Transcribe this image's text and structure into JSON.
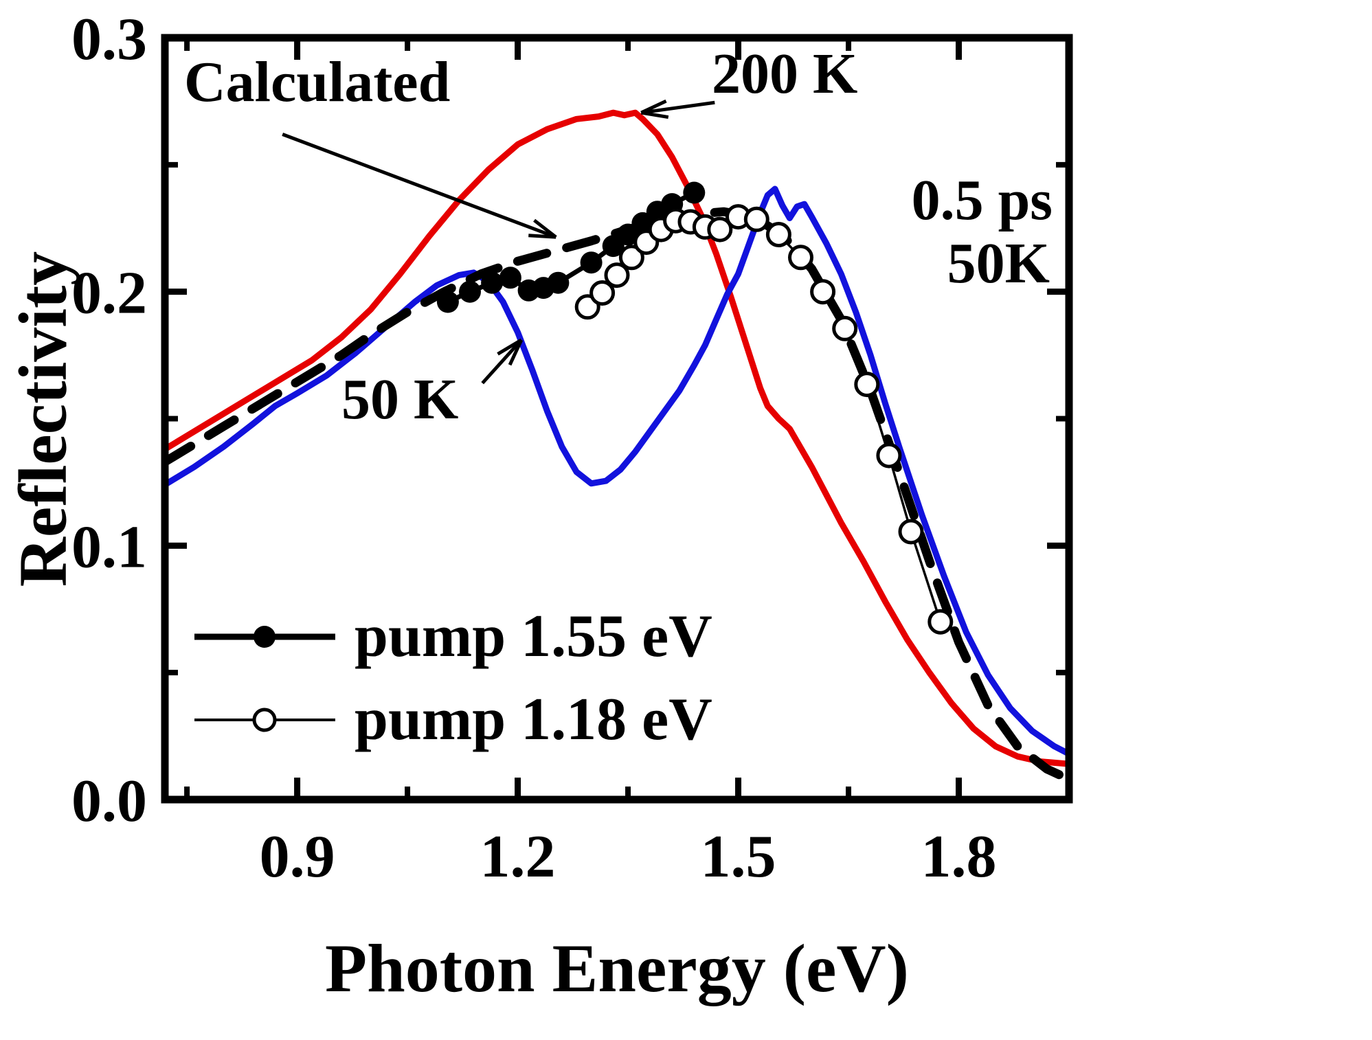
{
  "chart_data": {
    "type": "line",
    "title": "",
    "xlabel": "Photon Energy (eV)",
    "ylabel": "Reflectivity",
    "x_axis": {
      "label": "Photon Energy (eV)",
      "range": [
        0.72,
        1.95
      ],
      "major_ticks": [
        0.9,
        1.2,
        1.5,
        1.8
      ],
      "minor_ticks": [
        0.75,
        1.05,
        1.35,
        1.65
      ],
      "tick_labels": [
        "0.9",
        "1.2",
        "1.5",
        "1.8"
      ]
    },
    "y_axis": {
      "label": "Reflectivity",
      "range": [
        0.0,
        0.3
      ],
      "major_ticks": [
        0.0,
        0.1,
        0.2,
        0.3
      ],
      "minor_ticks": [
        0.05,
        0.15,
        0.25
      ],
      "tick_labels": [
        "0.0",
        "0.1",
        "0.2",
        "0.3"
      ]
    },
    "series": [
      {
        "name": "200 K",
        "color": "#e60000",
        "width": 9,
        "points": [
          [
            0.72,
            0.138
          ],
          [
            0.76,
            0.145
          ],
          [
            0.8,
            0.152
          ],
          [
            0.84,
            0.159
          ],
          [
            0.88,
            0.166
          ],
          [
            0.92,
            0.173
          ],
          [
            0.96,
            0.182
          ],
          [
            1.0,
            0.193
          ],
          [
            1.04,
            0.207
          ],
          [
            1.08,
            0.222
          ],
          [
            1.12,
            0.236
          ],
          [
            1.16,
            0.248
          ],
          [
            1.2,
            0.258
          ],
          [
            1.24,
            0.264
          ],
          [
            1.28,
            0.268
          ],
          [
            1.31,
            0.269
          ],
          [
            1.33,
            0.2705
          ],
          [
            1.345,
            0.2695
          ],
          [
            1.36,
            0.2705
          ],
          [
            1.37,
            0.268
          ],
          [
            1.39,
            0.262
          ],
          [
            1.41,
            0.253
          ],
          [
            1.43,
            0.242
          ],
          [
            1.45,
            0.23
          ],
          [
            1.47,
            0.215
          ],
          [
            1.49,
            0.198
          ],
          [
            1.51,
            0.18
          ],
          [
            1.53,
            0.162
          ],
          [
            1.54,
            0.155
          ],
          [
            1.555,
            0.15
          ],
          [
            1.57,
            0.146
          ],
          [
            1.58,
            0.141
          ],
          [
            1.6,
            0.131
          ],
          [
            1.62,
            0.12
          ],
          [
            1.64,
            0.109
          ],
          [
            1.67,
            0.094
          ],
          [
            1.7,
            0.078
          ],
          [
            1.73,
            0.063
          ],
          [
            1.76,
            0.05
          ],
          [
            1.79,
            0.038
          ],
          [
            1.82,
            0.028
          ],
          [
            1.85,
            0.021
          ],
          [
            1.88,
            0.017
          ],
          [
            1.91,
            0.015
          ],
          [
            1.95,
            0.014
          ]
        ]
      },
      {
        "name": "50 K",
        "color": "#1212dd",
        "width": 9,
        "points": [
          [
            0.72,
            0.124
          ],
          [
            0.76,
            0.131
          ],
          [
            0.8,
            0.139
          ],
          [
            0.84,
            0.148
          ],
          [
            0.87,
            0.155
          ],
          [
            0.9,
            0.16
          ],
          [
            0.94,
            0.167
          ],
          [
            0.98,
            0.176
          ],
          [
            1.02,
            0.186
          ],
          [
            1.06,
            0.196
          ],
          [
            1.09,
            0.2025
          ],
          [
            1.12,
            0.2065
          ],
          [
            1.14,
            0.2075
          ],
          [
            1.16,
            0.204
          ],
          [
            1.18,
            0.196
          ],
          [
            1.2,
            0.184
          ],
          [
            1.22,
            0.169
          ],
          [
            1.24,
            0.153
          ],
          [
            1.26,
            0.139
          ],
          [
            1.28,
            0.129
          ],
          [
            1.3,
            0.1245
          ],
          [
            1.32,
            0.1255
          ],
          [
            1.34,
            0.13
          ],
          [
            1.36,
            0.137
          ],
          [
            1.38,
            0.145
          ],
          [
            1.4,
            0.153
          ],
          [
            1.42,
            0.161
          ],
          [
            1.44,
            0.171
          ],
          [
            1.455,
            0.179
          ],
          [
            1.47,
            0.189
          ],
          [
            1.485,
            0.199
          ],
          [
            1.5,
            0.207
          ],
          [
            1.515,
            0.219
          ],
          [
            1.53,
            0.231
          ],
          [
            1.54,
            0.238
          ],
          [
            1.55,
            0.2405
          ],
          [
            1.56,
            0.234
          ],
          [
            1.57,
            0.229
          ],
          [
            1.58,
            0.2335
          ],
          [
            1.59,
            0.2345
          ],
          [
            1.6,
            0.2295
          ],
          [
            1.62,
            0.219
          ],
          [
            1.64,
            0.207
          ],
          [
            1.66,
            0.192
          ],
          [
            1.68,
            0.175
          ],
          [
            1.7,
            0.156
          ],
          [
            1.72,
            0.138
          ],
          [
            1.75,
            0.112
          ],
          [
            1.78,
            0.088
          ],
          [
            1.81,
            0.066
          ],
          [
            1.84,
            0.049
          ],
          [
            1.87,
            0.036
          ],
          [
            1.9,
            0.027
          ],
          [
            1.93,
            0.021
          ],
          [
            1.95,
            0.018
          ]
        ]
      },
      {
        "name": "Calculated",
        "color": "#000000",
        "width": 13,
        "dash": [
          44,
          30
        ],
        "points": [
          [
            0.72,
            0.133
          ],
          [
            0.76,
            0.14
          ],
          [
            0.8,
            0.147
          ],
          [
            0.84,
            0.154
          ],
          [
            0.88,
            0.161
          ],
          [
            0.92,
            0.168
          ],
          [
            0.96,
            0.175
          ],
          [
            1.0,
            0.183
          ],
          [
            1.05,
            0.192
          ],
          [
            1.1,
            0.2
          ],
          [
            1.15,
            0.207
          ],
          [
            1.2,
            0.212
          ],
          [
            1.25,
            0.216
          ],
          [
            1.3,
            0.22
          ],
          [
            1.35,
            0.2245
          ],
          [
            1.4,
            0.2285
          ],
          [
            1.44,
            0.2305
          ],
          [
            1.48,
            0.2315
          ],
          [
            1.52,
            0.2295
          ],
          [
            1.56,
            0.2225
          ],
          [
            1.6,
            0.209
          ],
          [
            1.64,
            0.189
          ],
          [
            1.68,
            0.161
          ],
          [
            1.72,
            0.128
          ],
          [
            1.76,
            0.094
          ],
          [
            1.8,
            0.062
          ],
          [
            1.84,
            0.037
          ],
          [
            1.88,
            0.021
          ],
          [
            1.92,
            0.012
          ],
          [
            1.95,
            0.008
          ]
        ]
      },
      {
        "name": "pump 1.55 eV",
        "color": "#000000",
        "width": 7,
        "marker": "filled-circle",
        "points": [
          [
            1.105,
            0.196
          ],
          [
            1.135,
            0.2
          ],
          [
            1.165,
            0.2035
          ],
          [
            1.19,
            0.2055
          ],
          [
            1.215,
            0.2005
          ],
          [
            1.235,
            0.2015
          ],
          [
            1.255,
            0.2035
          ],
          [
            1.3,
            0.2115
          ],
          [
            1.33,
            0.218
          ],
          [
            1.35,
            0.2225
          ],
          [
            1.37,
            0.227
          ],
          [
            1.39,
            0.2315
          ],
          [
            1.41,
            0.2345
          ],
          [
            1.44,
            0.239
          ]
        ]
      },
      {
        "name": "pump 1.18 eV",
        "color": "#000000",
        "width": 3.5,
        "marker": "open-circle",
        "points": [
          [
            1.295,
            0.194
          ],
          [
            1.315,
            0.1995
          ],
          [
            1.335,
            0.2065
          ],
          [
            1.355,
            0.2135
          ],
          [
            1.375,
            0.2195
          ],
          [
            1.395,
            0.2245
          ],
          [
            1.415,
            0.228
          ],
          [
            1.435,
            0.2275
          ],
          [
            1.455,
            0.2255
          ],
          [
            1.475,
            0.2245
          ],
          [
            1.5,
            0.2295
          ],
          [
            1.525,
            0.2285
          ],
          [
            1.555,
            0.2225
          ],
          [
            1.585,
            0.2135
          ],
          [
            1.615,
            0.2
          ],
          [
            1.645,
            0.1855
          ],
          [
            1.675,
            0.1635
          ],
          [
            1.705,
            0.1355
          ],
          [
            1.735,
            0.1055
          ],
          [
            1.775,
            0.07
          ]
        ]
      }
    ],
    "annotations": [
      {
        "text": "Calculated",
        "arrow": {
          "from": [
            0.88,
            0.262
          ],
          "to": [
            1.252,
            0.2215
          ]
        }
      },
      {
        "text": "200 K",
        "arrow": {
          "from": [
            1.468,
            0.2745
          ],
          "to": [
            1.368,
            0.2705
          ]
        }
      },
      {
        "text": "50 K",
        "arrow": {
          "from": [
            1.152,
            0.164
          ],
          "to": [
            1.205,
            0.181
          ]
        }
      },
      {
        "text": "0.5 ps"
      },
      {
        "text": "50K"
      }
    ],
    "legend": {
      "position": "lower-left",
      "items": [
        {
          "marker": "filled-circle",
          "label": "pump 1.55 eV"
        },
        {
          "marker": "open-circle",
          "label": "pump 1.18 eV"
        }
      ]
    }
  }
}
